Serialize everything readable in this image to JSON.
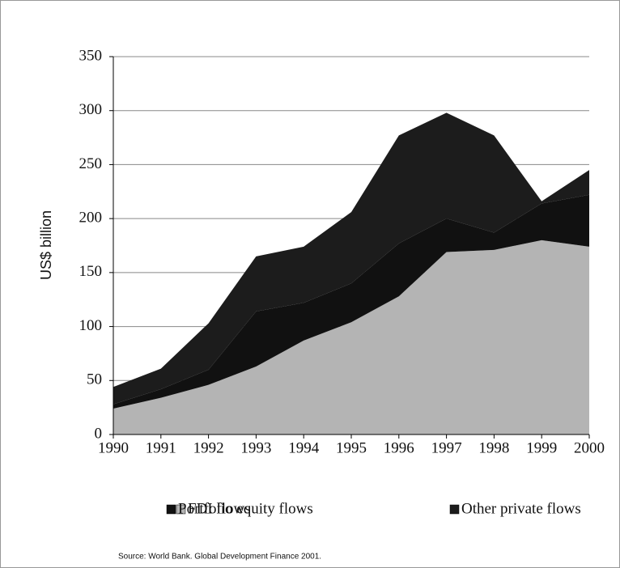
{
  "chart_data": {
    "type": "stacked_area",
    "y_label": "US$ billion",
    "categories": [
      "1990",
      "1991",
      "1992",
      "1993",
      "1994",
      "1995",
      "1996",
      "1997",
      "1998",
      "1999",
      "2000"
    ],
    "series": [
      {
        "name": "FDI flows",
        "color": "#b4b4b4",
        "values": [
          24,
          34,
          46,
          63,
          87,
          104,
          128,
          169,
          171,
          180,
          174
        ]
      },
      {
        "name": "Portfolio equity flows",
        "color": "#111111",
        "values": [
          4,
          8,
          14,
          51,
          35,
          36,
          49,
          31,
          16,
          34,
          48
        ]
      },
      {
        "name": "Other private flows",
        "color": "#1c1c1c",
        "values": [
          16,
          19,
          43,
          51,
          52,
          66,
          100,
          98,
          90,
          2,
          23
        ]
      }
    ],
    "ylim": [
      0,
      350
    ],
    "yticks": [
      0,
      50,
      100,
      150,
      200,
      250,
      300,
      350
    ],
    "grid": true,
    "source": "Source: World Bank. Global Development Finance 2001."
  }
}
